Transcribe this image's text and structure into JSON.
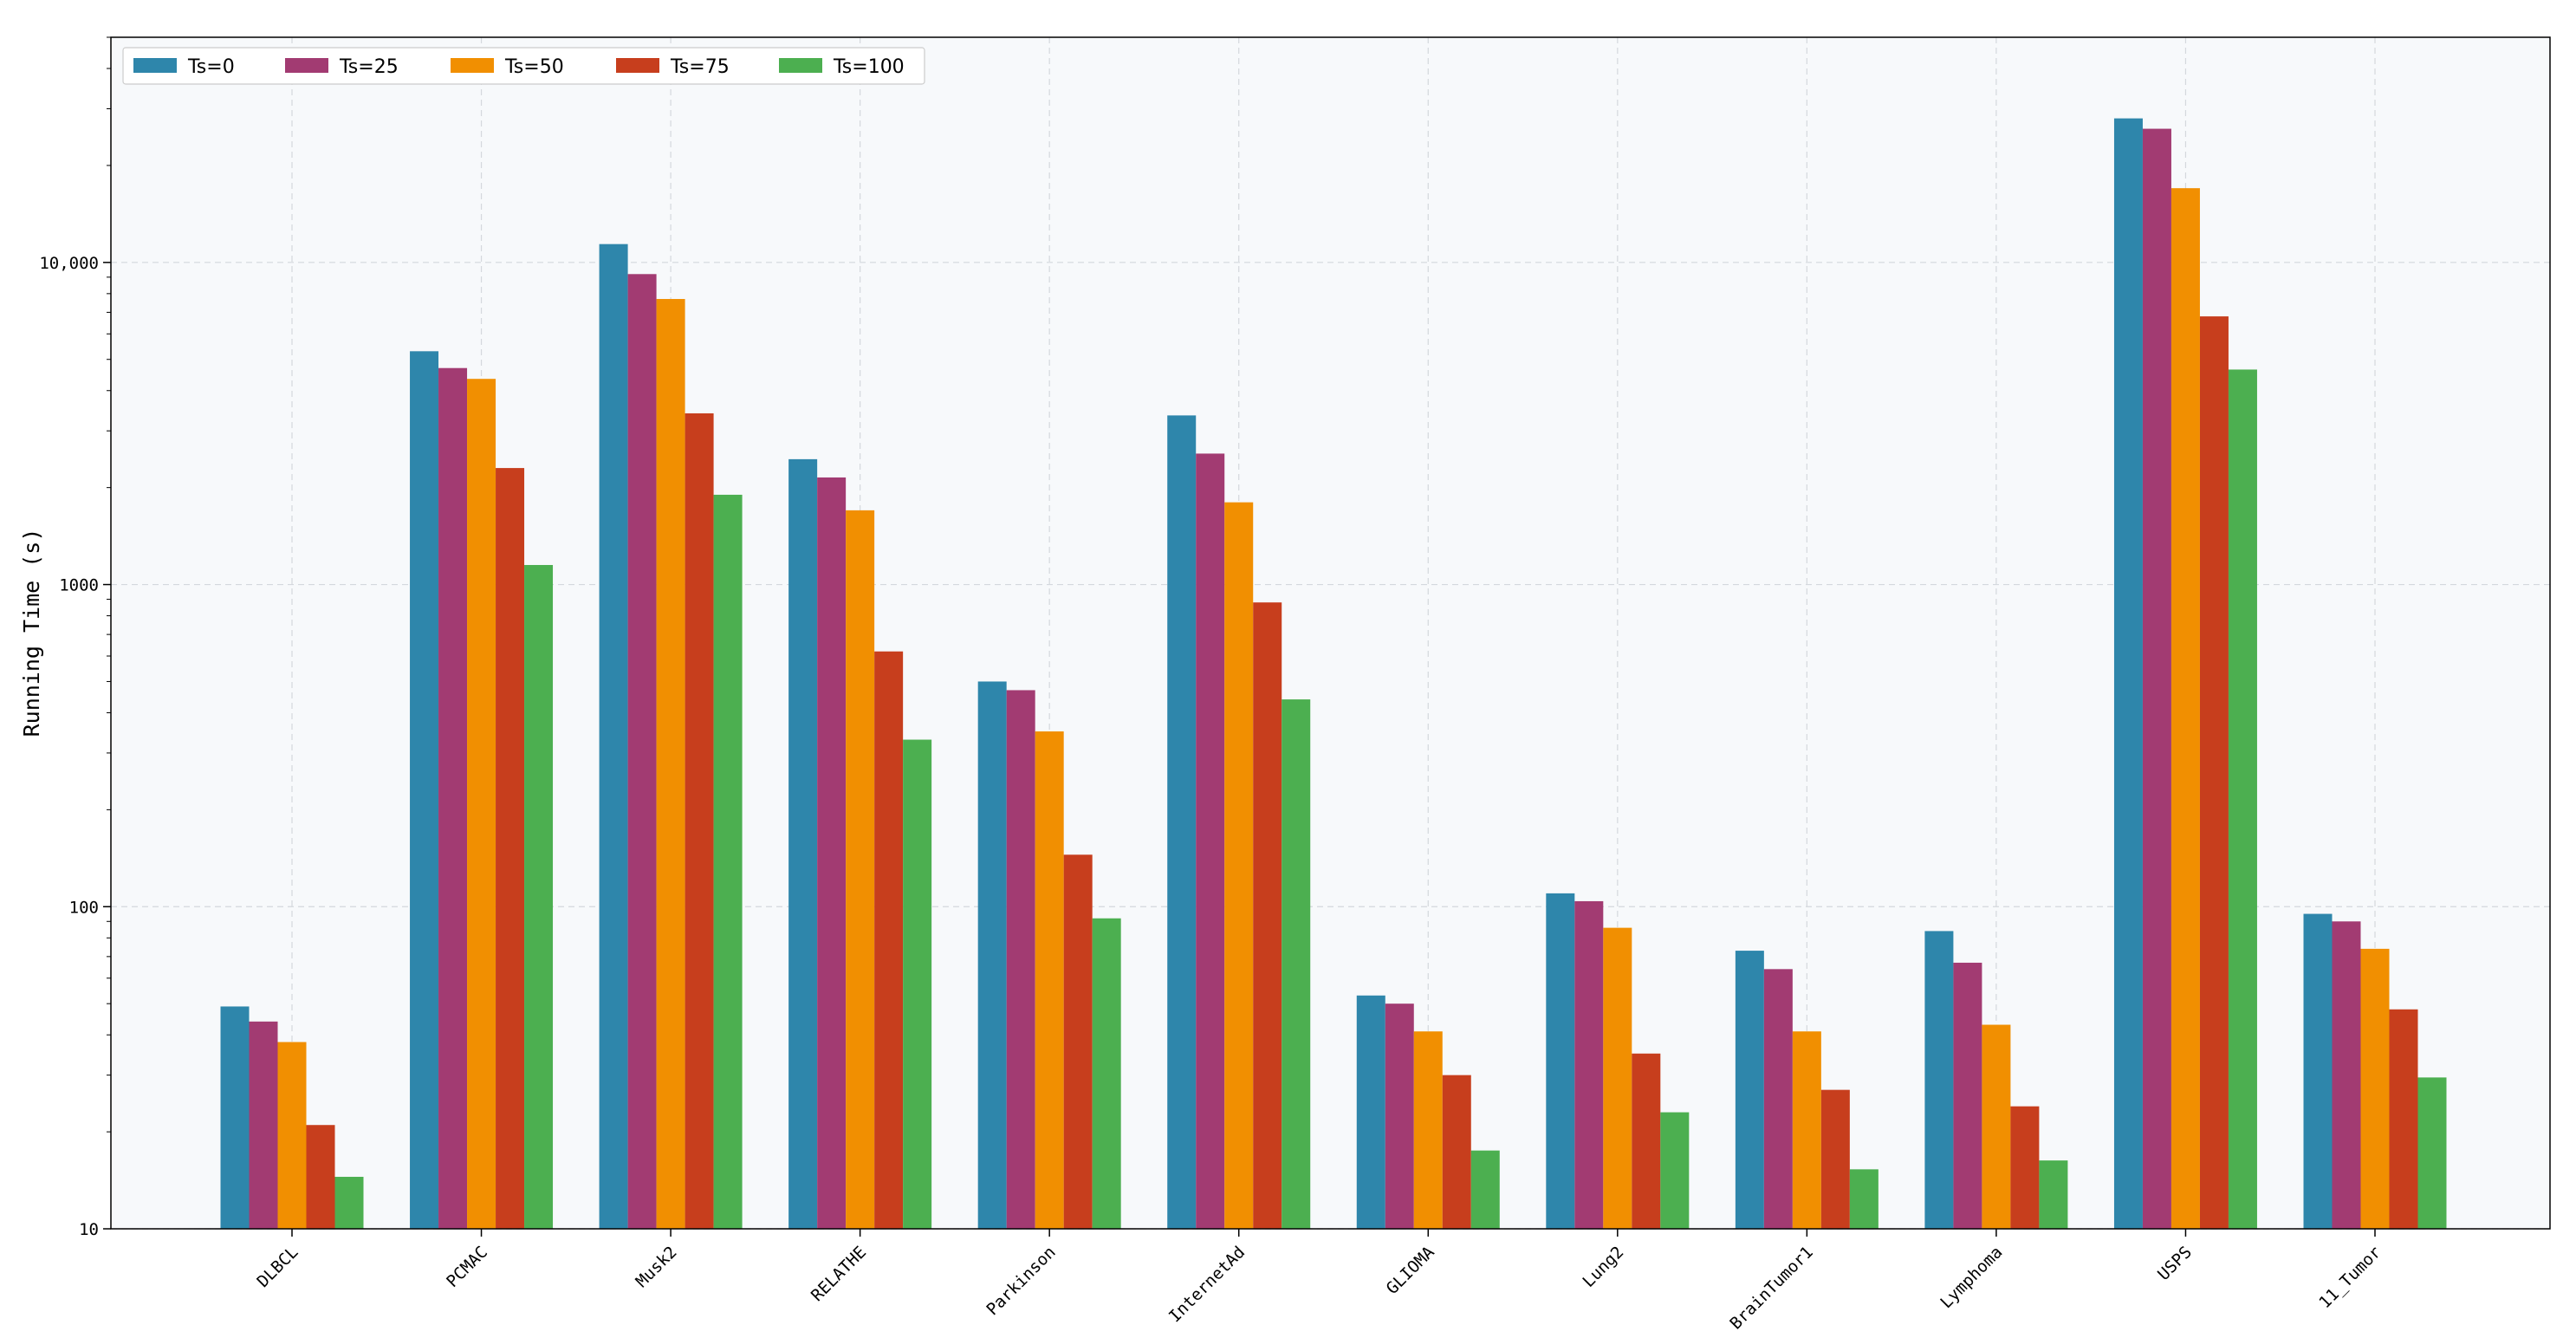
{
  "chart_data": {
    "type": "bar",
    "title": "",
    "xlabel": "",
    "ylabel": "Running Time (s)",
    "yscale": "log",
    "ylim": [
      10,
      50000
    ],
    "yticks": [
      10,
      100,
      1000,
      10000
    ],
    "ytick_labels": [
      "10",
      "100",
      "1000",
      "10,000"
    ],
    "grid": true,
    "legend_position": "top-left",
    "categories": [
      "DLBCL",
      "PCMAC",
      "Musk2",
      "RELATHE",
      "Parkinson",
      "InternetAd",
      "GLIOMA",
      "Lung2",
      "BrainTumor1",
      "Lymphoma",
      "USPS",
      "11_Tumor"
    ],
    "series": [
      {
        "name": "Ts=0",
        "color": "#2E86AB",
        "values": [
          49,
          5300,
          11400,
          2450,
          500,
          3350,
          53,
          110,
          73,
          84,
          28000,
          95
        ]
      },
      {
        "name": "Ts=25",
        "color": "#A23B72",
        "values": [
          44,
          4700,
          9200,
          2150,
          470,
          2550,
          50,
          104,
          64,
          67,
          26000,
          90
        ]
      },
      {
        "name": "Ts=50",
        "color": "#F18F01",
        "values": [
          38,
          4350,
          7700,
          1700,
          350,
          1800,
          41,
          86,
          41,
          43,
          17000,
          74
        ]
      },
      {
        "name": "Ts=75",
        "color": "#C73E1D",
        "values": [
          21,
          2300,
          3400,
          620,
          145,
          880,
          30,
          35,
          27,
          24,
          6800,
          48
        ]
      },
      {
        "name": "Ts=100",
        "color": "#4CAF50",
        "values": [
          14.5,
          1150,
          1900,
          330,
          92,
          440,
          17.5,
          23,
          15.3,
          16.3,
          4650,
          29.5
        ]
      }
    ]
  }
}
